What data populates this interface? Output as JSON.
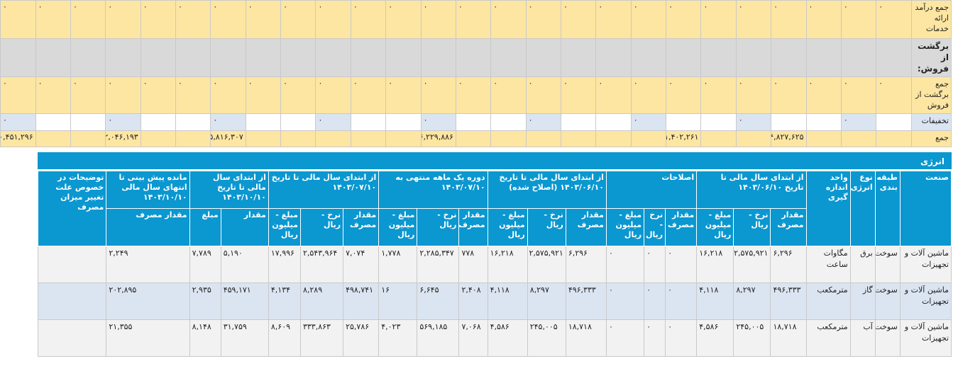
{
  "summary": {
    "rows": [
      {
        "label": "جمع درآمد ارائه خدمات",
        "values": [
          "۰",
          "۰",
          "۰",
          "۰",
          "۰",
          "۰",
          "۰",
          "۰",
          "۰",
          "۰",
          "۰",
          "۰",
          "۰",
          "۰",
          "۰",
          "۰",
          "۰",
          "۰",
          "۰",
          "۰",
          "۰",
          "۰",
          "۰",
          "۰",
          "۰",
          "۰"
        ]
      },
      {
        "label": "برگشت از فروش:",
        "values": [
          "",
          "",
          "",
          "",
          "",
          "",
          "",
          "",
          "",
          "",
          "",
          "",
          "",
          "",
          "",
          "",
          "",
          "",
          "",
          "",
          "",
          "",
          "",
          "",
          "",
          ""
        ]
      },
      {
        "label": "جمع برگشت از فروش",
        "values": [
          "۰",
          "۰",
          "۰",
          "۰",
          "۰",
          "۰",
          "۰",
          "۰",
          "۰",
          "۰",
          "۰",
          "۰",
          "۰",
          "۰",
          "۰",
          "۰",
          "۰",
          "۰",
          "۰",
          "۰",
          "۰",
          "۰",
          "۰",
          "۰",
          "۰",
          "۰"
        ]
      },
      {
        "label": "تخفیفات",
        "values": [
          "",
          "۰",
          "",
          "",
          "۰",
          "",
          "",
          "۰",
          "",
          "",
          "۰",
          "",
          "",
          "۰",
          "",
          "",
          "۰",
          "",
          "",
          "۰",
          "",
          "",
          "۰",
          "",
          "",
          "۰"
        ]
      },
      {
        "label": "جمع",
        "values": [
          "",
          "",
          "",
          "۵۴,۸۲۷,۶۲۵",
          "",
          "",
          "۱,۴۰۲,۲۶۱",
          "",
          "",
          "",
          "",
          "",
          "",
          "۵۶,۲۲۹,۸۸۶",
          "",
          "",
          "",
          "",
          "",
          "۵,۸۱۶,۳۰۷",
          "",
          "",
          "۶۲,۰۴۶,۱۹۳",
          "",
          "",
          "۴۰,۴۵۱,۲۹۶"
        ]
      }
    ]
  },
  "energy": {
    "title": "انرژی",
    "headers": {
      "industry": "صنعت",
      "classification": "طبقه بندی",
      "energy_type": "نوع انرژی",
      "unit": "واحد اندازه گیری",
      "g1": "از ابتدای سال مالی تا تاریخ ۱۴۰۳/۰۶/۱۰",
      "g2": "اصلاحات",
      "g3": "از ابتدای سال مالی تا تاریخ ۱۴۰۳/۰۶/۱۰ (اصلاح شده)",
      "g4": "دوره یک ماهه منتهی به ۱۴۰۳/۰۷/۱۰",
      "g5": "از ابتدای سال مالی تا تاریخ ۱۴۰۳/۰۷/۱۰",
      "g6": "از ابتدای سال مالی تا تاریخ ۱۴۰۳/۱۰/۱۰",
      "g7": "مانده پیش بینی تا انتهای سال مالی ۱۴۰۳/۱۰/۱۰",
      "notes": "توضیحات در خصوص علت تغییر میزان مصرف",
      "consumption": "مقدار مصرف",
      "rate": "نرخ - ریال",
      "amount_mr": "مبلغ - میلیون ریال",
      "quantity": "مقدار",
      "amount": "مبلغ"
    },
    "rows": [
      {
        "industry": "ماشین آلات و تجهیزات",
        "classification": "سوخت",
        "energy_type": "برق",
        "unit": "مگاوات ساعت",
        "g1": [
          "۶,۲۹۶",
          "۲,۵۷۵,۹۲۱",
          "۱۶,۲۱۸"
        ],
        "g2": [
          "۰",
          "۰",
          "۰"
        ],
        "g3": [
          "۶,۲۹۶",
          "۲,۵۷۵,۹۲۱",
          "۱۶,۲۱۸"
        ],
        "g4": [
          "۷۷۸",
          "۲,۲۸۵,۳۴۷",
          "۱,۷۷۸"
        ],
        "g5": [
          "۷,۰۷۴",
          "۲,۵۴۳,۹۶۴",
          "۱۷,۹۹۶"
        ],
        "g6": [
          "۵,۱۹۰",
          "۷,۷۸۹"
        ],
        "g7": "۲,۲۴۹",
        "notes": ""
      },
      {
        "industry": "ماشین آلات و تجهیزات",
        "classification": "سوخت",
        "energy_type": "گاز",
        "unit": "مترمکعب",
        "g1": [
          "۴۹۶,۳۳۳",
          "۸,۲۹۷",
          "۴,۱۱۸"
        ],
        "g2": [
          "۰",
          "۰",
          "۰"
        ],
        "g3": [
          "۴۹۶,۳۳۳",
          "۸,۲۹۷",
          "۴,۱۱۸"
        ],
        "g4": [
          "۲,۴۰۸",
          "۶,۶۴۵",
          "۱۶"
        ],
        "g5": [
          "۴۹۸,۷۴۱",
          "۸,۲۸۹",
          "۴,۱۳۴"
        ],
        "g6": [
          "۴۵۹,۱۷۱",
          "۲,۹۳۵"
        ],
        "g7": "۲۰۲,۸۹۵",
        "notes": ""
      },
      {
        "industry": "ماشین آلات و تجهیزات",
        "classification": "سوخت",
        "energy_type": "آب",
        "unit": "مترمکعب",
        "g1": [
          "۱۸,۷۱۸",
          "۲۴۵,۰۰۵",
          "۴,۵۸۶"
        ],
        "g2": [
          "۰",
          "۰",
          "۰"
        ],
        "g3": [
          "۱۸,۷۱۸",
          "۲۴۵,۰۰۵",
          "۴,۵۸۶"
        ],
        "g4": [
          "۷,۰۶۸",
          "۵۶۹,۱۸۵",
          "۴,۰۲۳"
        ],
        "g5": [
          "۲۵,۷۸۶",
          "۳۳۳,۸۶۳",
          "۸,۶۰۹"
        ],
        "g6": [
          "۳۱,۷۵۹",
          "۸,۱۴۸"
        ],
        "g7": "۲۱,۳۵۵",
        "notes": ""
      }
    ]
  }
}
